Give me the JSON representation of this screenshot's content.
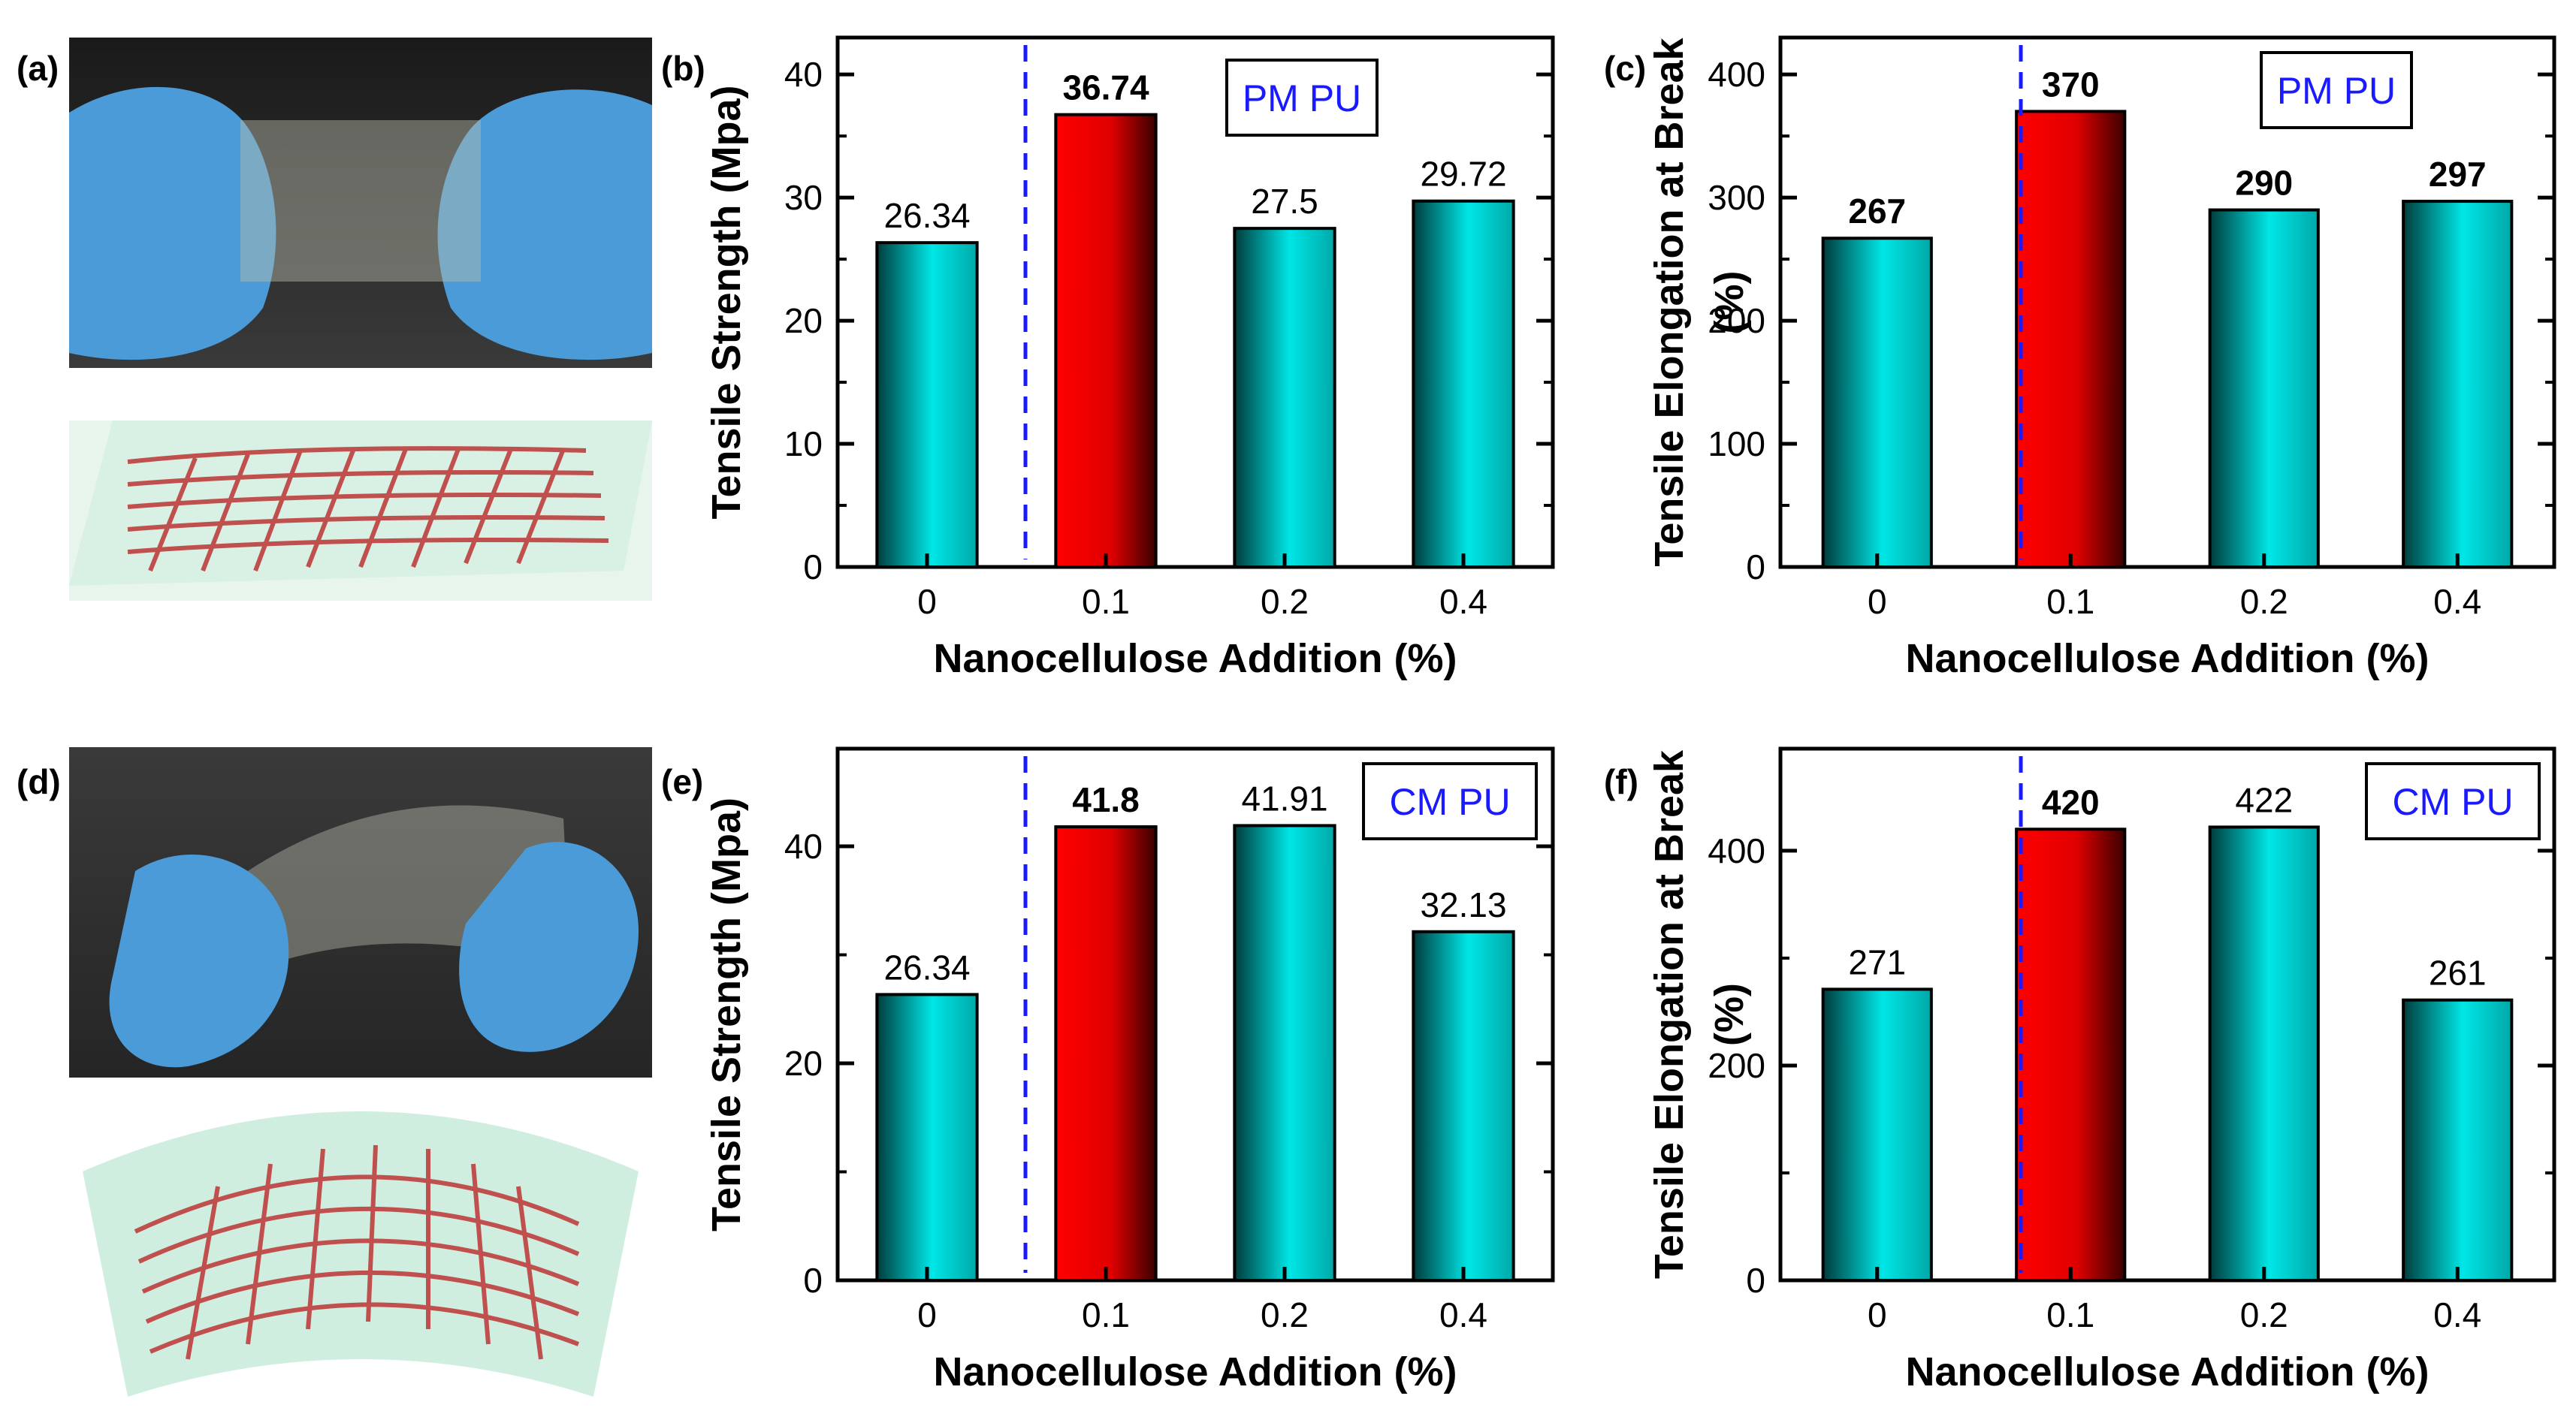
{
  "figure_labels": [
    "(a)",
    "(b)",
    "(c)",
    "(d)",
    "(e)",
    "(f)"
  ],
  "colors": {
    "cyan": "#00e6e6",
    "cyan_dark": "#006666",
    "red": "#ff0000",
    "red_dark": "#5a0000",
    "divider": "#1a1aff",
    "legend_text": "#1a1aff",
    "glove": "#4a9bd8",
    "fiber": "#c0504d",
    "film": "#cfeee0"
  },
  "photos": [
    {
      "label": "(a)",
      "description_icon": "flat-film-photo-icon"
    },
    {
      "label": "(d)",
      "description_icon": "bent-film-photo-icon"
    }
  ],
  "chart_data": [
    {
      "label": "(b)",
      "type": "bar",
      "legend": "PM PU",
      "categories": [
        "0",
        "0.1",
        "0.2",
        "0.4"
      ],
      "values": [
        26.34,
        36.74,
        27.5,
        29.72
      ],
      "value_labels": [
        "26.34",
        "36.74",
        "27.5",
        "29.72"
      ],
      "highlight_index": 1,
      "bold_labels": [
        false,
        true,
        false,
        false
      ],
      "xlabel": "Nanocellulose Addition (%)",
      "ylabel": [
        "Tensile Strength (Mpa)"
      ],
      "ylim": [
        0,
        43
      ],
      "yticks": [
        0,
        10,
        20,
        30,
        40
      ]
    },
    {
      "label": "(c)",
      "type": "bar",
      "legend": "PM PU",
      "categories": [
        "0",
        "0.1",
        "0.2",
        "0.4"
      ],
      "values": [
        267,
        370,
        290,
        297
      ],
      "value_labels": [
        "267",
        "370",
        "290",
        "297"
      ],
      "highlight_index": 1,
      "bold_labels": [
        true,
        true,
        true,
        true
      ],
      "xlabel": "Nanocellulose Addition (%)",
      "ylabel": [
        "Tensile Elongation at Break",
        "(%)"
      ],
      "ylim": [
        0,
        430
      ],
      "yticks": [
        0,
        100,
        200,
        300,
        400
      ]
    },
    {
      "label": "(e)",
      "type": "bar",
      "legend": "CM PU",
      "categories": [
        "0",
        "0.1",
        "0.2",
        "0.4"
      ],
      "values": [
        26.34,
        41.8,
        41.91,
        32.13
      ],
      "value_labels": [
        "26.34",
        "41.8",
        "41.91",
        "32.13"
      ],
      "highlight_index": 1,
      "bold_labels": [
        false,
        true,
        false,
        false
      ],
      "xlabel": "Nanocellulose Addition (%)",
      "ylabel": [
        "Tensile Strength (Mpa)"
      ],
      "ylim": [
        0,
        49
      ],
      "yticks": [
        0,
        20,
        40
      ]
    },
    {
      "label": "(f)",
      "type": "bar",
      "legend": "CM PU",
      "categories": [
        "0",
        "0.1",
        "0.2",
        "0.4"
      ],
      "values": [
        271,
        420,
        422,
        261
      ],
      "value_labels": [
        "271",
        "420",
        "422",
        "261"
      ],
      "highlight_index": 1,
      "bold_labels": [
        false,
        true,
        false,
        false
      ],
      "xlabel": "Nanocellulose Addition (%)",
      "ylabel": [
        "Tensile Elongation at Break",
        "(%)"
      ],
      "ylim": [
        0,
        495
      ],
      "yticks": [
        0,
        200,
        400
      ]
    }
  ]
}
